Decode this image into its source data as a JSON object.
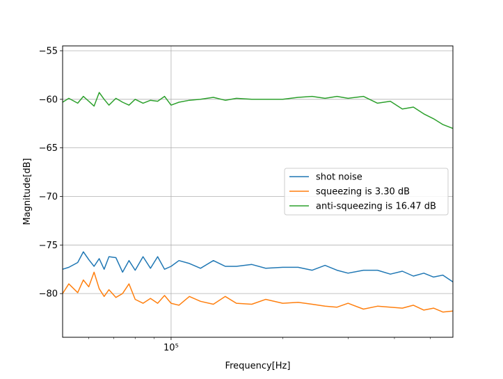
{
  "chart_data": {
    "type": "line",
    "title": "",
    "xlabel": "Frequency[Hz]",
    "ylabel": "Magnitude[dB]",
    "xscale": "log",
    "xlim": [
      51000,
      575000
    ],
    "ylim": [
      -84.5,
      -54.5
    ],
    "yticks": [
      -55,
      -60,
      -65,
      -70,
      -75,
      -80
    ],
    "ytick_labels": [
      "−55",
      "−60",
      "−65",
      "−70",
      "−75",
      "−80"
    ],
    "xtick_major": [
      100000
    ],
    "xtick_major_labels": [
      "10⁵"
    ],
    "xtick_minor": [
      60000,
      70000,
      80000,
      90000,
      200000,
      300000,
      400000,
      500000
    ],
    "grid": true,
    "legend_position": "center-right",
    "series": [
      {
        "name": "shot noise",
        "color": "#1f77b4",
        "x": [
          51000,
          53000,
          56000,
          58000,
          60000,
          62000,
          64000,
          66000,
          68000,
          71000,
          74000,
          77000,
          80000,
          84000,
          88000,
          92000,
          96000,
          100000,
          105000,
          112000,
          120000,
          130000,
          140000,
          150000,
          165000,
          180000,
          200000,
          220000,
          240000,
          260000,
          280000,
          300000,
          330000,
          360000,
          390000,
          420000,
          450000,
          480000,
          510000,
          540000,
          575000
        ],
        "y": [
          -77.5,
          -77.3,
          -76.8,
          -75.7,
          -76.5,
          -77.2,
          -76.4,
          -77.5,
          -76.2,
          -76.3,
          -77.8,
          -76.6,
          -77.6,
          -76.2,
          -77.4,
          -76.2,
          -77.5,
          -77.2,
          -76.6,
          -76.9,
          -77.4,
          -76.6,
          -77.2,
          -77.2,
          -77.0,
          -77.4,
          -77.3,
          -77.3,
          -77.6,
          -77.1,
          -77.6,
          -77.9,
          -77.6,
          -77.6,
          -78.0,
          -77.7,
          -78.2,
          -77.9,
          -78.3,
          -78.1,
          -78.8
        ]
      },
      {
        "name": "squeezing is 3.30 dB",
        "color": "#ff7f0e",
        "x": [
          51000,
          53000,
          56000,
          58000,
          60000,
          62000,
          64000,
          66000,
          68000,
          71000,
          74000,
          77000,
          80000,
          84000,
          88000,
          92000,
          96000,
          100000,
          105000,
          112000,
          120000,
          130000,
          140000,
          150000,
          165000,
          180000,
          200000,
          220000,
          240000,
          260000,
          280000,
          300000,
          330000,
          360000,
          390000,
          420000,
          450000,
          480000,
          510000,
          540000,
          575000
        ],
        "y": [
          -80.0,
          -79.0,
          -79.9,
          -78.6,
          -79.3,
          -77.8,
          -79.5,
          -80.3,
          -79.6,
          -80.4,
          -80.0,
          -79.0,
          -80.6,
          -81.0,
          -80.5,
          -81.0,
          -80.2,
          -81.0,
          -81.2,
          -80.3,
          -80.8,
          -81.1,
          -80.3,
          -81.0,
          -81.1,
          -80.6,
          -81.0,
          -80.9,
          -81.1,
          -81.3,
          -81.4,
          -81.0,
          -81.6,
          -81.3,
          -81.4,
          -81.5,
          -81.2,
          -81.7,
          -81.5,
          -81.9,
          -81.8
        ]
      },
      {
        "name": "anti-squeezing is 16.47 dB",
        "color": "#2ca02c",
        "x": [
          51000,
          53000,
          56000,
          58000,
          60000,
          62000,
          64000,
          66000,
          68000,
          71000,
          74000,
          77000,
          80000,
          84000,
          88000,
          92000,
          96000,
          100000,
          105000,
          112000,
          120000,
          130000,
          140000,
          150000,
          165000,
          180000,
          200000,
          220000,
          240000,
          260000,
          280000,
          300000,
          330000,
          360000,
          390000,
          420000,
          450000,
          480000,
          510000,
          540000,
          575000
        ],
        "y": [
          -60.3,
          -59.9,
          -60.4,
          -59.7,
          -60.2,
          -60.7,
          -59.3,
          -60.0,
          -60.6,
          -59.9,
          -60.3,
          -60.6,
          -60.0,
          -60.4,
          -60.1,
          -60.2,
          -59.7,
          -60.6,
          -60.3,
          -60.1,
          -60.0,
          -59.8,
          -60.1,
          -59.9,
          -60.0,
          -60.0,
          -60.0,
          -59.8,
          -59.7,
          -59.9,
          -59.7,
          -59.9,
          -59.7,
          -60.4,
          -60.2,
          -61.0,
          -60.8,
          -61.5,
          -62.0,
          -62.6,
          -63.0
        ]
      }
    ]
  }
}
